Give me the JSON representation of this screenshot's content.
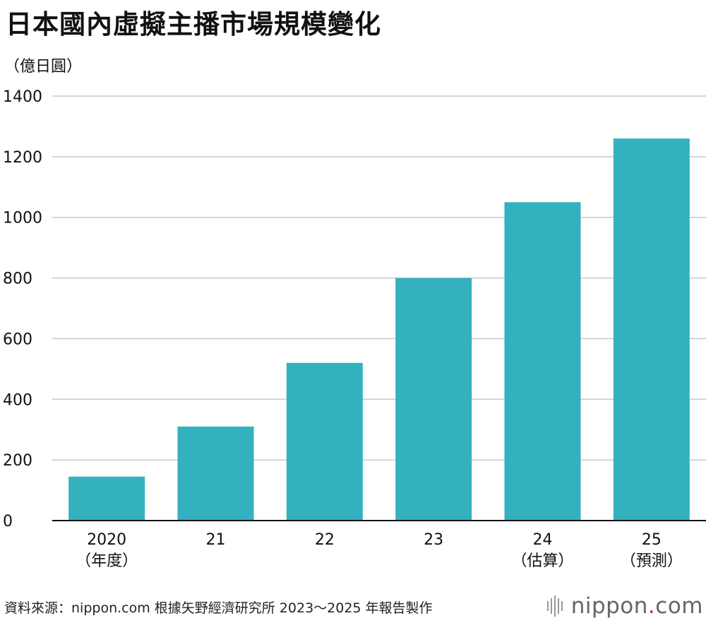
{
  "title": "日本國內虛擬主播市場規模變化",
  "source": "資料來源：nippon.com 根據矢野經濟研究所 2023～2025 年報告製作",
  "logo": {
    "name": "nippon",
    "dot": ".",
    "suffix": "com"
  },
  "colors": {
    "bar": "#33b1bf",
    "grid": "#c8c8c8",
    "axis": "#111111"
  },
  "chart_data": {
    "type": "bar",
    "title": "日本國內虛擬主播市場規模變化",
    "ylabel": "（億日圓）",
    "xlabel": "",
    "ylim": [
      0,
      1400
    ],
    "yticks": [
      0,
      200,
      400,
      600,
      800,
      1000,
      1200,
      1400
    ],
    "grid": true,
    "categories": [
      {
        "label": "2020",
        "sub": "（年度）"
      },
      {
        "label": "21",
        "sub": ""
      },
      {
        "label": "22",
        "sub": ""
      },
      {
        "label": "23",
        "sub": ""
      },
      {
        "label": "24",
        "sub": "（估算）"
      },
      {
        "label": "25",
        "sub": "（預測）"
      }
    ],
    "values": [
      145,
      310,
      520,
      800,
      1050,
      1260
    ]
  }
}
